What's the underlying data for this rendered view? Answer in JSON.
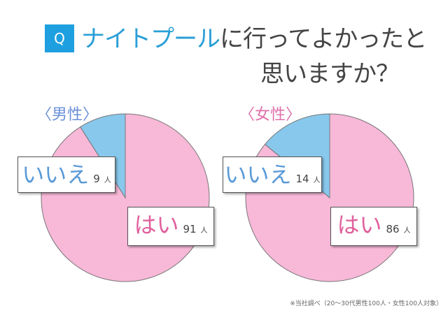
{
  "title": {
    "q": "Q",
    "highlight": "ナイトプール",
    "rest": "に行ってよかったと",
    "line2": "思いますか？"
  },
  "footnote": "※当社調べ（20〜30代男性100人・女性100人対象）",
  "colors": {
    "yes": "#f8b8d8",
    "no": "#88c8ec",
    "male_label": "#6a90d8",
    "female_label": "#e070aa",
    "yes_text": "#e0609c",
    "no_text": "#5a9ad8"
  },
  "chart_data": [
    {
      "type": "pie",
      "title": "〈男性〉",
      "categories": [
        "はい",
        "いいえ"
      ],
      "values": [
        91,
        9
      ],
      "value_labels": [
        "91",
        "9"
      ],
      "unit": "人"
    },
    {
      "type": "pie",
      "title": "〈女性〉",
      "categories": [
        "はい",
        "いいえ"
      ],
      "values": [
        86,
        14
      ],
      "value_labels": [
        "86",
        "14"
      ],
      "unit": "人"
    }
  ]
}
